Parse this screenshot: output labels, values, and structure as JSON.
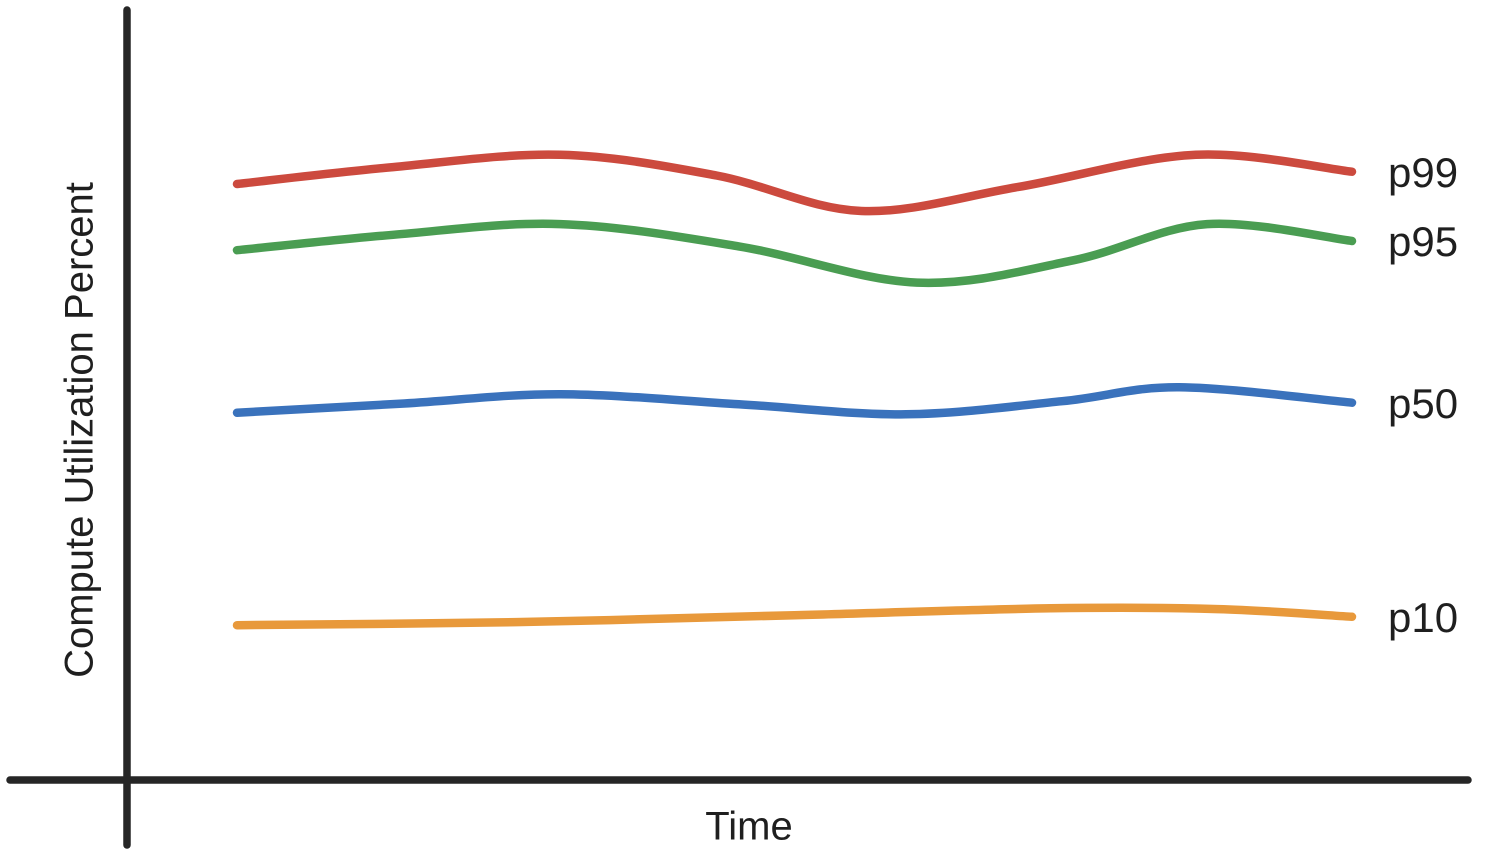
{
  "chart_data": {
    "type": "line",
    "title": "",
    "xlabel": "Time",
    "ylabel": "Compute Utilization Percent",
    "grid": false,
    "x_tick_labels": [],
    "y_tick_labels": [],
    "axis_color": "#262626",
    "label_color": "#1f1f1f",
    "legend_position": "inline-right-end-of-line",
    "note": "Axes are unlabeled (no ticks); x is fraction of time axis, values are estimated utilization percent assuming y axis spans 0-100.",
    "ylim": [
      0,
      100
    ],
    "series": [
      {
        "name": "p99",
        "color": "#CC4A3E",
        "x": [
          0.0,
          0.14,
          0.29,
          0.43,
          0.56,
          0.7,
          0.86,
          1.0
        ],
        "values": [
          77.4,
          79.6,
          81.2,
          78.5,
          73.9,
          77.0,
          81.2,
          79.0
        ]
      },
      {
        "name": "p95",
        "color": "#4A9D52",
        "x": [
          0.0,
          0.14,
          0.29,
          0.45,
          0.61,
          0.75,
          0.87,
          1.0
        ],
        "values": [
          68.8,
          70.8,
          72.2,
          69.3,
          64.6,
          67.5,
          72.2,
          70.0
        ]
      },
      {
        "name": "p50",
        "color": "#3A72BC",
        "x": [
          0.0,
          0.15,
          0.29,
          0.45,
          0.6,
          0.74,
          0.845,
          1.0
        ],
        "values": [
          47.7,
          48.9,
          50.1,
          48.8,
          47.5,
          49.2,
          51.0,
          49.0
        ]
      },
      {
        "name": "p10",
        "color": "#E8993B",
        "x": [
          0.0,
          0.25,
          0.5,
          0.73,
          0.88,
          1.0
        ],
        "values": [
          20.1,
          20.5,
          21.4,
          22.3,
          22.2,
          21.2
        ]
      }
    ]
  }
}
